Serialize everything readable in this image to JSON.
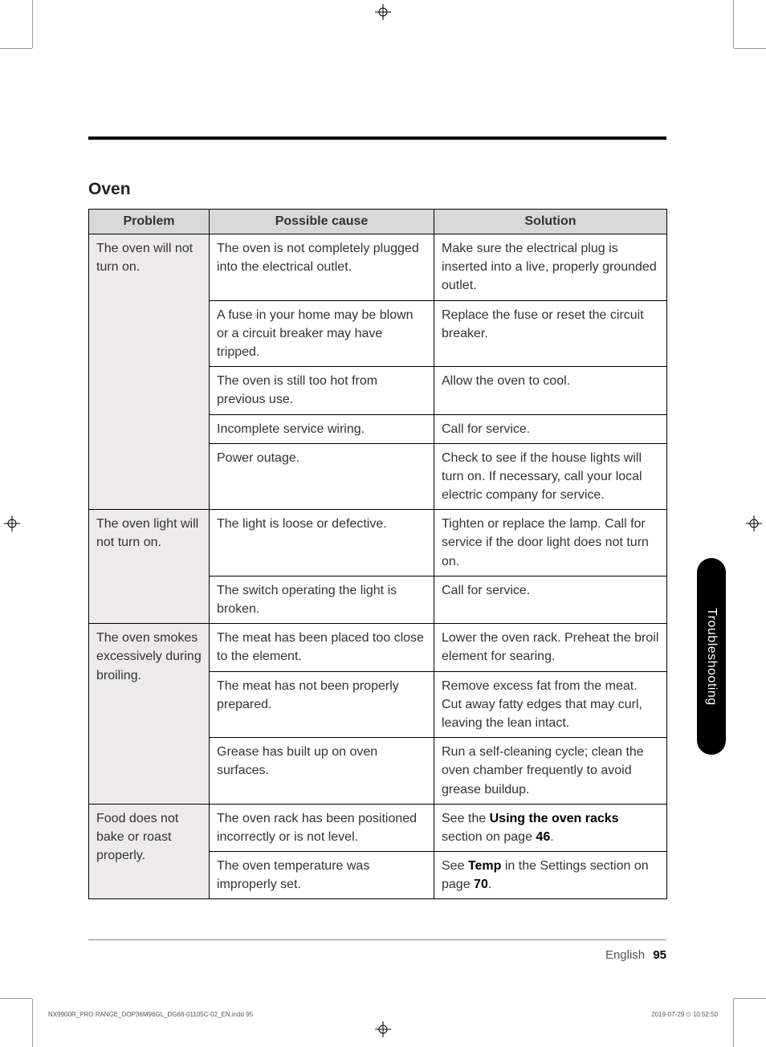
{
  "section_title": "Oven",
  "headers": {
    "problem": "Problem",
    "cause": "Possible cause",
    "solution": "Solution"
  },
  "groups": [
    {
      "problem": "The oven will not turn on.",
      "rows": [
        {
          "cause": "The oven is not completely plugged into the electrical outlet.",
          "solution": "Make sure the electrical plug is inserted into a live, properly grounded outlet."
        },
        {
          "cause": "A fuse in your home may be blown or a circuit breaker may have tripped.",
          "solution": "Replace the fuse or reset the circuit breaker."
        },
        {
          "cause": "The oven is still too hot from previous use.",
          "solution": "Allow the oven to cool."
        },
        {
          "cause": "Incomplete service wiring.",
          "solution": "Call for service."
        },
        {
          "cause": "Power outage.",
          "solution": "Check to see if the house lights will turn on. If necessary, call your local electric company for service."
        }
      ]
    },
    {
      "problem": "The oven light will not turn on.",
      "rows": [
        {
          "cause": "The light is loose or defective.",
          "solution": "Tighten or replace the lamp. Call for service if the door light does not turn on."
        },
        {
          "cause": "The switch operating the light is broken.",
          "solution": "Call for service."
        }
      ]
    },
    {
      "problem": "The oven smokes excessively during broiling.",
      "rows": [
        {
          "cause": "The meat has been placed too close to the element.",
          "solution": "Lower the oven rack. Preheat the broil element for searing."
        },
        {
          "cause": "The meat has not been properly prepared.",
          "solution": "Remove excess fat from the meat. Cut away fatty edges that may curl, leaving the lean intact."
        },
        {
          "cause": "Grease has built up on oven surfaces.",
          "solution": "Run a self-cleaning cycle; clean the oven chamber frequently to avoid grease buildup."
        }
      ]
    },
    {
      "problem": "Food does not bake or roast properly.",
      "rows": [
        {
          "cause": "The oven rack has been positioned incorrectly or is not level.",
          "solution_html": "See the <span class='bold'>Using the oven racks</span> section on page <span class='bold'>46</span>."
        },
        {
          "cause": "The oven temperature was improperly set.",
          "solution_html": "See <span class='bold'>Temp</span> in the Settings section on page <span class='bold'>70</span>."
        }
      ]
    }
  ],
  "side_tab": "Troubleshooting",
  "footer": {
    "language": "English",
    "page": "95"
  },
  "print_footer": {
    "file": "NX9900R_PRO RANGE_DOP36M96GL_DG68-01105C-02_EN.indd   95",
    "timestamp": "2019-07-29   ⏲ 10:52:50"
  }
}
